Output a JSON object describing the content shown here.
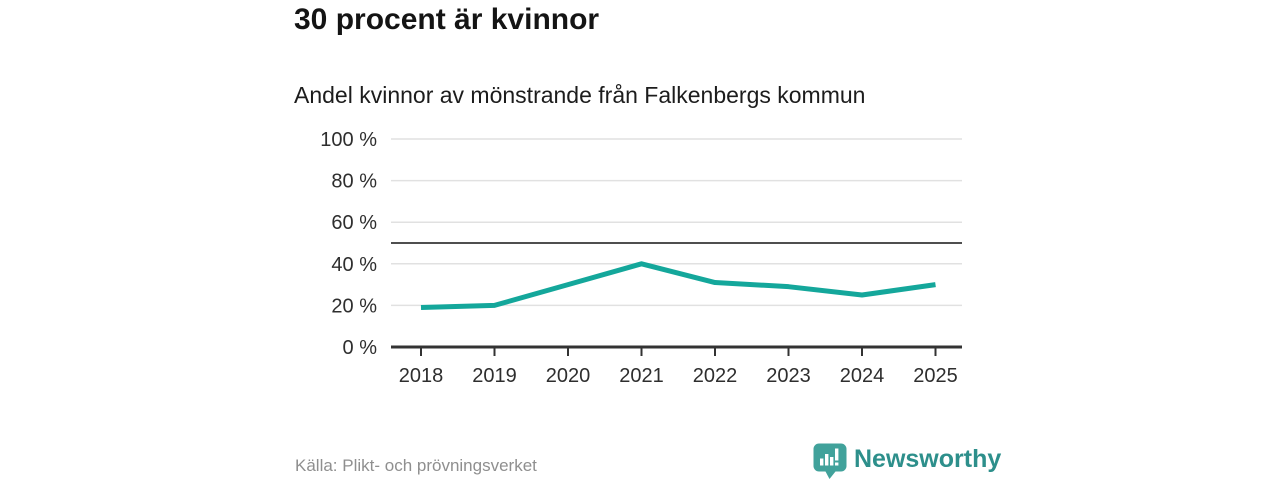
{
  "header": {
    "title": "30 procent är kvinnor",
    "subtitle": "Andel kvinnor av mönstrande från Falkenbergs kommun"
  },
  "chart_data": {
    "type": "line",
    "title": "Andel kvinnor av mönstrande från Falkenbergs kommun",
    "categories": [
      "2018",
      "2019",
      "2020",
      "2021",
      "2022",
      "2023",
      "2024",
      "2025"
    ],
    "series": [
      {
        "name": "Andel kvinnor av mönstrande",
        "values": [
          19,
          20,
          30,
          40,
          31,
          29,
          25,
          30
        ]
      }
    ],
    "unit": "%",
    "ylim": [
      0,
      100
    ],
    "y_ticks": [
      0,
      20,
      40,
      60,
      80,
      100
    ],
    "y_tick_labels": [
      "0 %",
      "20 %",
      "40 %",
      "60 %",
      "80 %",
      "100 %"
    ],
    "reference_line": {
      "value": 50
    },
    "grid": true,
    "legend": "none",
    "line_color": "#14a79b"
  },
  "footer": {
    "source": "Källa: Plikt- och prövningsverket",
    "brand_name": "Newsworthy"
  },
  "colors": {
    "accent": "#14a79b",
    "grid": "#e1e1e1",
    "reference_line": "#4f4f4f",
    "axis": "#333333",
    "tick_text": "#2e2e2e",
    "logo_bubble": "#41a29b",
    "logo_text": "#2d8f8b"
  }
}
